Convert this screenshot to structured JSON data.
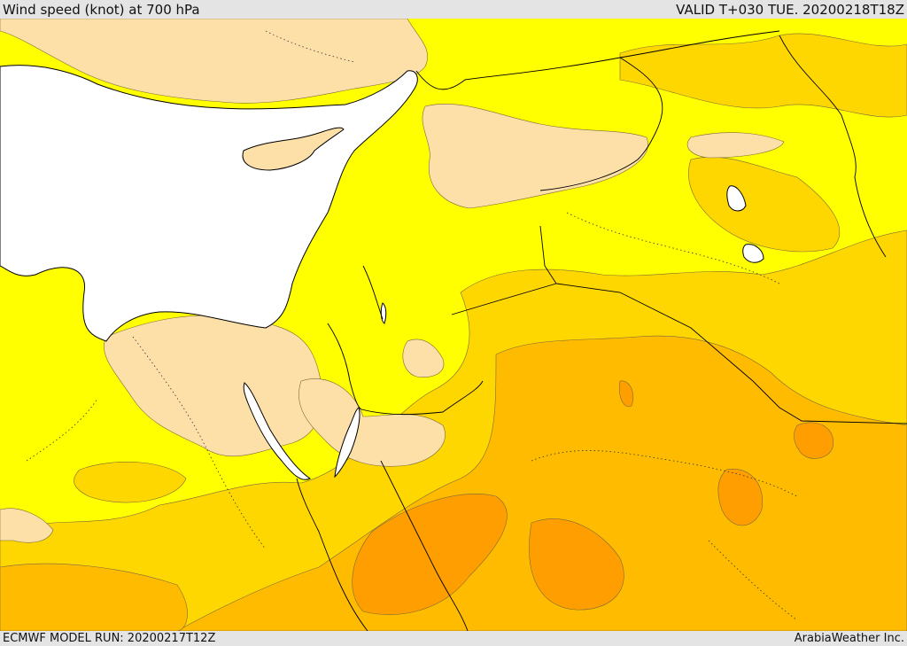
{
  "header": {
    "title": "Wind speed (knot) at 700 hPa",
    "valid": "VALID T+030 TUE. 20200218T18Z"
  },
  "footer": {
    "model_run": "ECMWF MODEL RUN: 20200217T12Z",
    "credit": "ArabiaWeather Inc."
  },
  "map": {
    "variable": "wind speed at 700 hPa",
    "region": "Eastern Mediterranean / Levant / Arabia",
    "colors": {
      "sea": "#ffffff",
      "calm": "#fde0a8",
      "light": "#ffff00",
      "moderate": "#ffd700",
      "strong": "#ffbb00",
      "stronger": "#ff9e00",
      "coast_line": "#000000",
      "contour_line": "#5a4a2a"
    }
  }
}
